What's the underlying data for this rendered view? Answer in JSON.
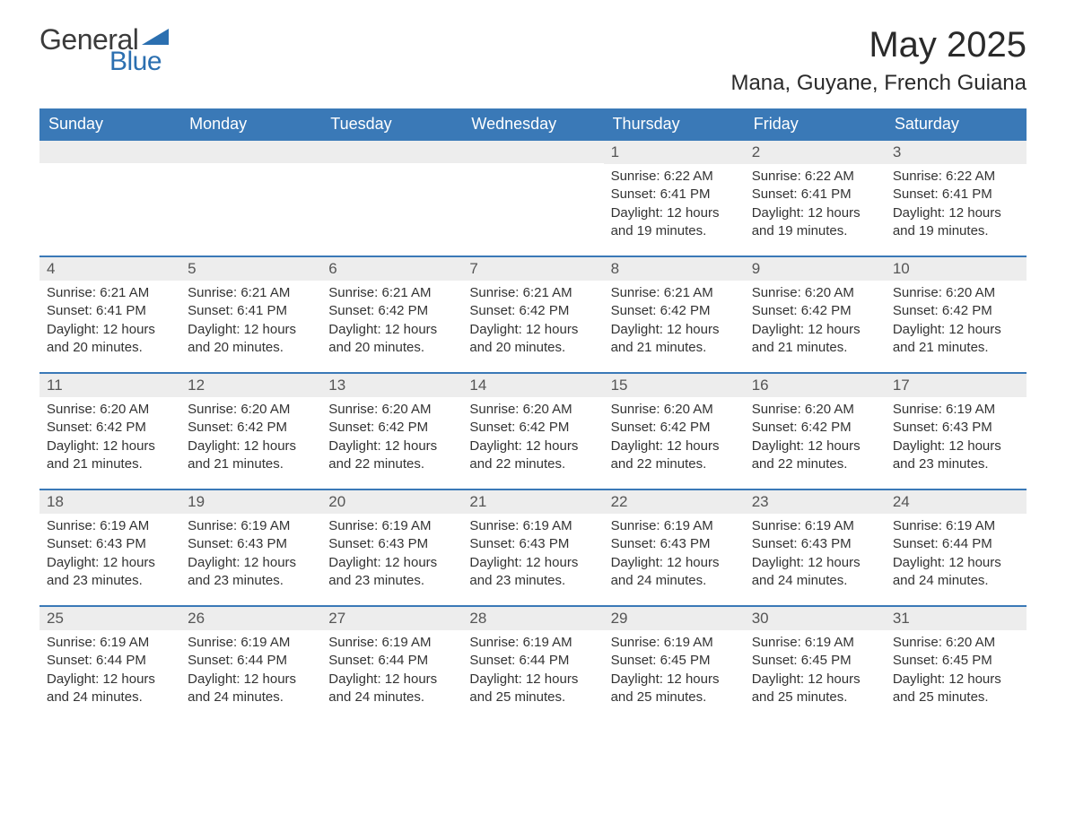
{
  "logo": {
    "text1": "General",
    "text2": "Blue",
    "tri_color": "#2b6fb0"
  },
  "title": "May 2025",
  "location": "Mana, Guyane, French Guiana",
  "colors": {
    "header_bg": "#3a79b7",
    "header_text": "#ffffff",
    "daynum_bg": "#ededed",
    "daynum_text": "#555555",
    "body_text": "#333333",
    "row_border": "#3a79b7"
  },
  "days_of_week": [
    "Sunday",
    "Monday",
    "Tuesday",
    "Wednesday",
    "Thursday",
    "Friday",
    "Saturday"
  ],
  "weeks": [
    [
      {
        "empty": true
      },
      {
        "empty": true
      },
      {
        "empty": true
      },
      {
        "empty": true
      },
      {
        "n": "1",
        "sr": "6:22 AM",
        "ss": "6:41 PM",
        "dl": "12 hours and 19 minutes."
      },
      {
        "n": "2",
        "sr": "6:22 AM",
        "ss": "6:41 PM",
        "dl": "12 hours and 19 minutes."
      },
      {
        "n": "3",
        "sr": "6:22 AM",
        "ss": "6:41 PM",
        "dl": "12 hours and 19 minutes."
      }
    ],
    [
      {
        "n": "4",
        "sr": "6:21 AM",
        "ss": "6:41 PM",
        "dl": "12 hours and 20 minutes."
      },
      {
        "n": "5",
        "sr": "6:21 AM",
        "ss": "6:41 PM",
        "dl": "12 hours and 20 minutes."
      },
      {
        "n": "6",
        "sr": "6:21 AM",
        "ss": "6:42 PM",
        "dl": "12 hours and 20 minutes."
      },
      {
        "n": "7",
        "sr": "6:21 AM",
        "ss": "6:42 PM",
        "dl": "12 hours and 20 minutes."
      },
      {
        "n": "8",
        "sr": "6:21 AM",
        "ss": "6:42 PM",
        "dl": "12 hours and 21 minutes."
      },
      {
        "n": "9",
        "sr": "6:20 AM",
        "ss": "6:42 PM",
        "dl": "12 hours and 21 minutes."
      },
      {
        "n": "10",
        "sr": "6:20 AM",
        "ss": "6:42 PM",
        "dl": "12 hours and 21 minutes."
      }
    ],
    [
      {
        "n": "11",
        "sr": "6:20 AM",
        "ss": "6:42 PM",
        "dl": "12 hours and 21 minutes."
      },
      {
        "n": "12",
        "sr": "6:20 AM",
        "ss": "6:42 PM",
        "dl": "12 hours and 21 minutes."
      },
      {
        "n": "13",
        "sr": "6:20 AM",
        "ss": "6:42 PM",
        "dl": "12 hours and 22 minutes."
      },
      {
        "n": "14",
        "sr": "6:20 AM",
        "ss": "6:42 PM",
        "dl": "12 hours and 22 minutes."
      },
      {
        "n": "15",
        "sr": "6:20 AM",
        "ss": "6:42 PM",
        "dl": "12 hours and 22 minutes."
      },
      {
        "n": "16",
        "sr": "6:20 AM",
        "ss": "6:42 PM",
        "dl": "12 hours and 22 minutes."
      },
      {
        "n": "17",
        "sr": "6:19 AM",
        "ss": "6:43 PM",
        "dl": "12 hours and 23 minutes."
      }
    ],
    [
      {
        "n": "18",
        "sr": "6:19 AM",
        "ss": "6:43 PM",
        "dl": "12 hours and 23 minutes."
      },
      {
        "n": "19",
        "sr": "6:19 AM",
        "ss": "6:43 PM",
        "dl": "12 hours and 23 minutes."
      },
      {
        "n": "20",
        "sr": "6:19 AM",
        "ss": "6:43 PM",
        "dl": "12 hours and 23 minutes."
      },
      {
        "n": "21",
        "sr": "6:19 AM",
        "ss": "6:43 PM",
        "dl": "12 hours and 23 minutes."
      },
      {
        "n": "22",
        "sr": "6:19 AM",
        "ss": "6:43 PM",
        "dl": "12 hours and 24 minutes."
      },
      {
        "n": "23",
        "sr": "6:19 AM",
        "ss": "6:43 PM",
        "dl": "12 hours and 24 minutes."
      },
      {
        "n": "24",
        "sr": "6:19 AM",
        "ss": "6:44 PM",
        "dl": "12 hours and 24 minutes."
      }
    ],
    [
      {
        "n": "25",
        "sr": "6:19 AM",
        "ss": "6:44 PM",
        "dl": "12 hours and 24 minutes."
      },
      {
        "n": "26",
        "sr": "6:19 AM",
        "ss": "6:44 PM",
        "dl": "12 hours and 24 minutes."
      },
      {
        "n": "27",
        "sr": "6:19 AM",
        "ss": "6:44 PM",
        "dl": "12 hours and 24 minutes."
      },
      {
        "n": "28",
        "sr": "6:19 AM",
        "ss": "6:44 PM",
        "dl": "12 hours and 25 minutes."
      },
      {
        "n": "29",
        "sr": "6:19 AM",
        "ss": "6:45 PM",
        "dl": "12 hours and 25 minutes."
      },
      {
        "n": "30",
        "sr": "6:19 AM",
        "ss": "6:45 PM",
        "dl": "12 hours and 25 minutes."
      },
      {
        "n": "31",
        "sr": "6:20 AM",
        "ss": "6:45 PM",
        "dl": "12 hours and 25 minutes."
      }
    ]
  ],
  "labels": {
    "sunrise": "Sunrise: ",
    "sunset": "Sunset: ",
    "daylight": "Daylight: "
  }
}
